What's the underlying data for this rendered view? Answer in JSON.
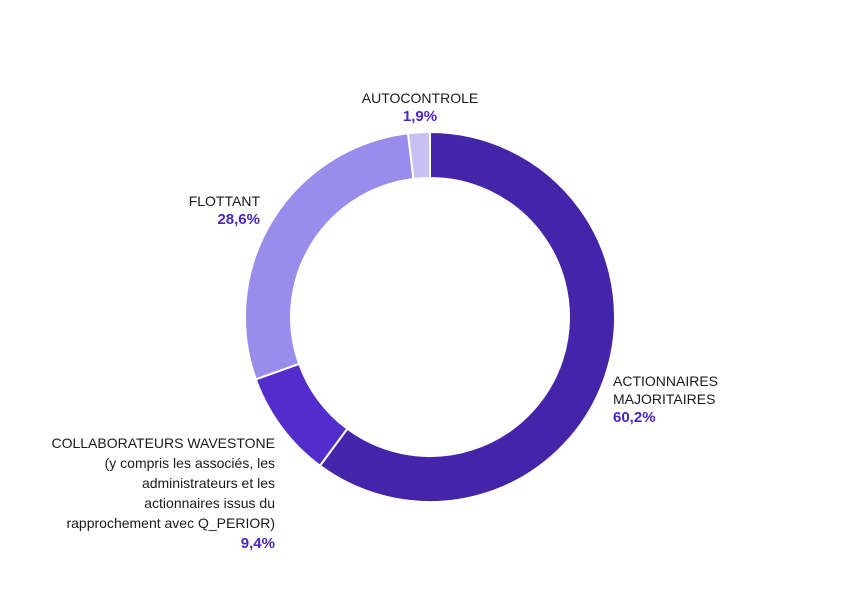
{
  "chart_data": {
    "type": "pie",
    "variant": "donut",
    "slices": [
      {
        "key": "action",
        "label": "ACTIONNAIRES\nMAJORITAIRES",
        "value": 60.2,
        "display": "60,2%",
        "color": "#4424a8"
      },
      {
        "key": "collab",
        "label": "COLLABORATEURS WAVESTONE\n(y compris les associés, les\nadministrateurs et les\nactionnaires issus du\nrapprochement avec Q_PERIOR)",
        "value": 9.4,
        "display": "9,4%",
        "color": "#532dcc"
      },
      {
        "key": "flot",
        "label": "FLOTTANT",
        "value": 28.6,
        "display": "28,6%",
        "color": "#9a8cea"
      },
      {
        "key": "auto",
        "label": "AUTOCONTROLE",
        "value": 1.9,
        "display": "1,9%",
        "color": "#c8c0f4"
      }
    ],
    "value_label_color": "#4a25c4"
  }
}
